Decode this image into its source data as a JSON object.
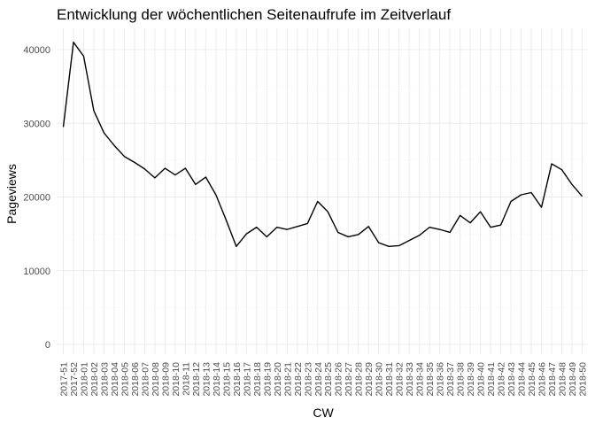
{
  "chart_data": {
    "type": "line",
    "title": "Entwicklung der wöchentlichen Seitenaufrufe im Zeitverlauf",
    "xlabel": "CW",
    "ylabel": "Pageviews",
    "ylim": [
      0,
      43000
    ],
    "yticks": [
      "0",
      "10000",
      "20000",
      "30000",
      "40000"
    ],
    "ytick_values": [
      0,
      10000,
      20000,
      30000,
      40000
    ],
    "grid": true,
    "categories": [
      "2017-51",
      "2017-52",
      "2018-01",
      "2018-02",
      "2018-03",
      "2018-04",
      "2018-05",
      "2018-06",
      "2018-07",
      "2018-08",
      "2018-09",
      "2018-10",
      "2018-11",
      "2018-12",
      "2018-13",
      "2018-14",
      "2018-15",
      "2018-16",
      "2018-17",
      "2018-18",
      "2018-19",
      "2018-20",
      "2018-21",
      "2018-22",
      "2018-23",
      "2018-24",
      "2018-25",
      "2018-26",
      "2018-27",
      "2018-28",
      "2018-29",
      "2018-30",
      "2018-31",
      "2018-32",
      "2018-33",
      "2018-34",
      "2018-35",
      "2018-36",
      "2018-37",
      "2018-38",
      "2018-39",
      "2018-40",
      "2018-41",
      "2018-42",
      "2018-43",
      "2018-44",
      "2018-45",
      "2018-46",
      "2018-47",
      "2018-48",
      "2018-49",
      "2018-50"
    ],
    "values": [
      29500,
      41000,
      39100,
      31700,
      28700,
      27000,
      25500,
      24700,
      23800,
      22600,
      23900,
      23000,
      23900,
      21700,
      22700,
      20300,
      16900,
      13300,
      15000,
      15900,
      14600,
      15900,
      15600,
      16000,
      16400,
      19400,
      18000,
      15200,
      14600,
      14900,
      16000,
      13800,
      13300,
      13400,
      14100,
      14800,
      15900,
      15600,
      15200,
      17500,
      16500,
      18000,
      15900,
      16200,
      19400,
      20300,
      20600,
      18600,
      24500,
      23700,
      21700,
      20100
    ]
  }
}
